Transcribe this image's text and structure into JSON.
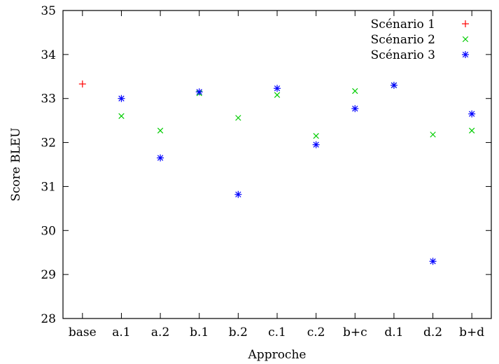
{
  "chart_data": {
    "type": "scatter",
    "title": "",
    "xlabel": "Approche",
    "ylabel": "Score BLEU",
    "categories": [
      "base",
      "a.1",
      "a.2",
      "b.1",
      "b.2",
      "c.1",
      "c.2",
      "b+c",
      "d.1",
      "d.2",
      "b+d"
    ],
    "ylim": [
      28,
      35
    ],
    "yticks": [
      "28",
      "29",
      "30",
      "31",
      "32",
      "33",
      "34",
      "35"
    ],
    "grid": false,
    "legend_position": "top-right",
    "series": [
      {
        "name": "Scénario 1",
        "marker": "plus",
        "color": "#ff0000",
        "values": [
          33.33,
          null,
          null,
          null,
          null,
          null,
          null,
          null,
          null,
          null,
          null
        ]
      },
      {
        "name": "Scénario 2",
        "marker": "cross",
        "color": "#00cc00",
        "values": [
          null,
          32.6,
          32.27,
          33.12,
          32.56,
          33.08,
          32.15,
          33.17,
          33.3,
          32.18,
          32.27
        ]
      },
      {
        "name": "Scénario 3",
        "marker": "star",
        "color": "#0000ff",
        "values": [
          null,
          33.0,
          31.65,
          33.15,
          30.82,
          33.23,
          31.95,
          32.77,
          33.3,
          29.3,
          32.65
        ]
      }
    ]
  }
}
